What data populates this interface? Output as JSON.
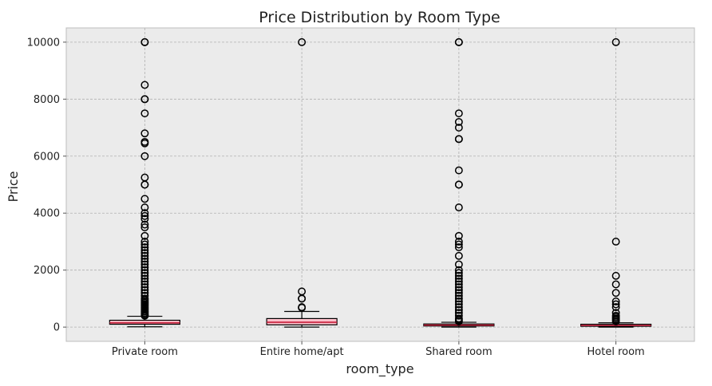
{
  "chart_data": {
    "type": "box",
    "title": "Price Distribution by Room Type",
    "xlabel": "room_type",
    "ylabel": "Price",
    "ylim": [
      -500,
      10500
    ],
    "yticks": [
      0,
      2000,
      4000,
      6000,
      8000,
      10000
    ],
    "grid": true,
    "colors": {
      "box_fill": "#ffc0cb",
      "median": "#c41e3a",
      "background": "#ebebeb"
    },
    "categories": [
      "Private room",
      "Entire home/apt",
      "Shared room",
      "Hotel room"
    ],
    "boxes": [
      {
        "name": "Private room",
        "whisker_low": 10,
        "q1": 100,
        "median": 150,
        "q3": 240,
        "whisker_high": 380,
        "outliers": [
          10000,
          10000,
          8500,
          8000,
          8000,
          7500,
          6800,
          6500,
          6450,
          6000,
          5250,
          5000,
          5000,
          4500,
          4200,
          4000,
          3900,
          3800,
          3600,
          3500,
          3200,
          3000,
          2900,
          2800,
          2700,
          2600,
          2500,
          2400,
          2300,
          2200,
          2100,
          2000,
          1900,
          1800,
          1700,
          1600,
          1500,
          1400,
          1300,
          1200,
          1100,
          1000,
          950,
          900,
          850,
          800,
          750,
          700,
          650,
          600,
          550,
          500,
          450,
          420,
          400
        ]
      },
      {
        "name": "Entire home/apt",
        "whisker_low": 0,
        "q1": 80,
        "median": 170,
        "q3": 300,
        "whisker_high": 550,
        "outliers": [
          10000,
          1250,
          1000,
          1000,
          700,
          680
        ]
      },
      {
        "name": "Shared room",
        "whisker_low": 0,
        "q1": 40,
        "median": 70,
        "q3": 110,
        "whisker_high": 170,
        "outliers": [
          10000,
          10000,
          7500,
          7200,
          7000,
          6600,
          6600,
          5500,
          5000,
          5000,
          4200,
          3200,
          3000,
          2900,
          2800,
          2500,
          2200,
          2000,
          1900,
          1800,
          1700,
          1600,
          1500,
          1400,
          1300,
          1200,
          1100,
          1000,
          900,
          800,
          700,
          600,
          500,
          400,
          300,
          250,
          200
        ]
      },
      {
        "name": "Hotel room",
        "whisker_low": 0,
        "q1": 30,
        "median": 60,
        "q3": 100,
        "whisker_high": 150,
        "outliers": [
          10000,
          3000,
          1800,
          1500,
          1200,
          900,
          800,
          700,
          500,
          400,
          350,
          300,
          250,
          200
        ]
      }
    ]
  }
}
